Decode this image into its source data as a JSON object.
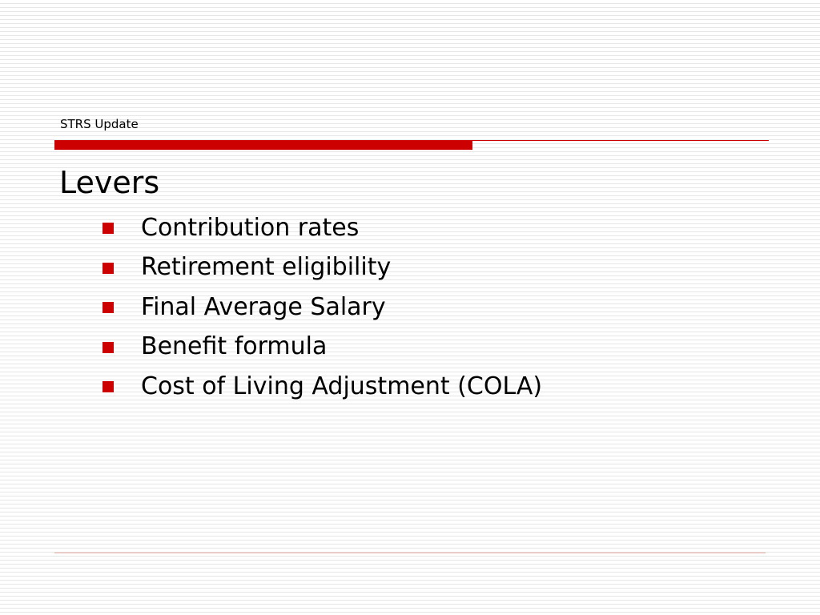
{
  "header": {
    "label": "STRS Update"
  },
  "slide": {
    "title": "Levers",
    "bullets": [
      "Contribution rates",
      "Retirement eligibility",
      "Final Average Salary",
      "Benefit formula",
      "Cost of Living Adjustment (COLA)"
    ]
  },
  "colors": {
    "accent": "#cc0000",
    "footer_rule": "#e8b0a8",
    "background_lines": "#e6e6e6"
  }
}
